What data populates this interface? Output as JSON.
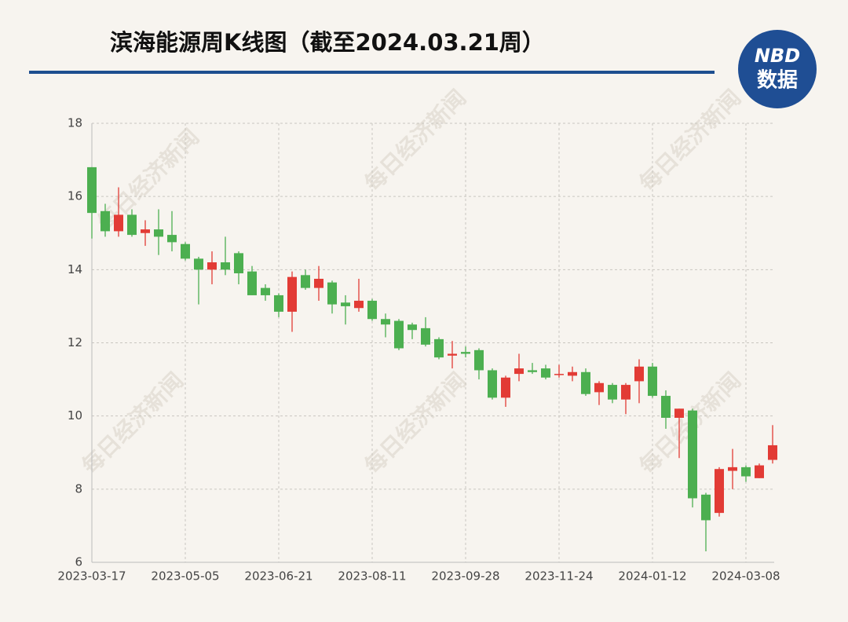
{
  "chart_data": {
    "type": "candlestick",
    "title": "滨海能源周K线图（截至2024.03.21周）",
    "logo": {
      "top": "NBD",
      "bottom": "数据"
    },
    "watermark": "每日经济新闻",
    "categories": [
      "2023-03-17",
      null,
      null,
      null,
      null,
      null,
      null,
      "2023-05-05",
      null,
      null,
      null,
      null,
      null,
      null,
      "2023-06-21",
      null,
      null,
      null,
      null,
      null,
      null,
      "2023-08-11",
      null,
      null,
      null,
      null,
      null,
      null,
      "2023-09-28",
      null,
      null,
      null,
      null,
      null,
      null,
      "2023-11-24",
      null,
      null,
      null,
      null,
      null,
      null,
      "2024-01-12",
      null,
      null,
      null,
      null,
      null,
      null,
      "2024-03-08",
      null,
      null
    ],
    "open": [
      16.8,
      15.6,
      15.05,
      15.5,
      15.0,
      15.1,
      14.95,
      14.7,
      14.3,
      14.0,
      14.2,
      14.45,
      13.95,
      13.5,
      13.3,
      12.85,
      13.85,
      13.5,
      13.65,
      13.1,
      12.95,
      13.15,
      12.65,
      12.6,
      12.5,
      12.4,
      12.1,
      11.65,
      11.75,
      11.8,
      11.25,
      10.5,
      11.15,
      11.25,
      11.3,
      11.15,
      11.1,
      11.2,
      10.65,
      10.85,
      10.45,
      10.95,
      11.35,
      10.55,
      9.95,
      10.15,
      7.85,
      7.35,
      8.5,
      8.6,
      8.3,
      8.8
    ],
    "high": [
      16.8,
      15.8,
      16.25,
      15.65,
      15.35,
      15.65,
      15.6,
      14.75,
      14.35,
      14.5,
      14.9,
      14.5,
      14.1,
      13.6,
      13.35,
      13.95,
      14.0,
      14.1,
      13.7,
      13.3,
      13.75,
      13.2,
      12.8,
      12.65,
      12.55,
      12.7,
      12.15,
      12.05,
      11.9,
      11.85,
      11.3,
      11.1,
      11.7,
      11.45,
      11.4,
      11.4,
      11.35,
      11.3,
      10.95,
      10.9,
      10.9,
      11.55,
      11.45,
      10.7,
      10.2,
      10.2,
      7.9,
      8.6,
      9.1,
      8.65,
      8.7,
      9.75
    ],
    "low": [
      14.85,
      14.9,
      14.9,
      14.9,
      14.65,
      14.4,
      14.5,
      14.25,
      13.05,
      13.6,
      13.85,
      13.6,
      13.3,
      13.15,
      12.7,
      12.3,
      13.45,
      13.15,
      12.8,
      12.5,
      12.85,
      12.6,
      12.15,
      11.8,
      12.1,
      11.9,
      11.55,
      11.3,
      11.6,
      11.0,
      10.45,
      10.25,
      10.95,
      11.15,
      11.0,
      11.05,
      10.95,
      10.55,
      10.3,
      10.35,
      10.05,
      10.35,
      10.5,
      9.65,
      8.85,
      7.5,
      6.3,
      7.25,
      8.0,
      8.2,
      8.3,
      8.7
    ],
    "close": [
      15.55,
      15.05,
      15.5,
      14.95,
      15.1,
      14.9,
      14.75,
      14.3,
      14.0,
      14.2,
      14.0,
      13.9,
      13.3,
      13.3,
      12.85,
      13.8,
      13.5,
      13.75,
      13.05,
      13.0,
      13.15,
      12.65,
      12.5,
      11.85,
      12.35,
      11.95,
      11.6,
      11.7,
      11.7,
      11.25,
      10.5,
      11.05,
      11.3,
      11.2,
      11.05,
      11.15,
      11.2,
      10.6,
      10.9,
      10.45,
      10.85,
      11.35,
      10.55,
      9.95,
      10.2,
      7.75,
      7.15,
      8.55,
      8.6,
      8.35,
      8.65,
      9.2
    ],
    "up_color": "#e23b35",
    "down_color": "#4caf50",
    "ylim": [
      6,
      18
    ],
    "yticks": [
      6,
      8,
      10,
      12,
      14,
      16,
      18
    ],
    "grid": true
  }
}
